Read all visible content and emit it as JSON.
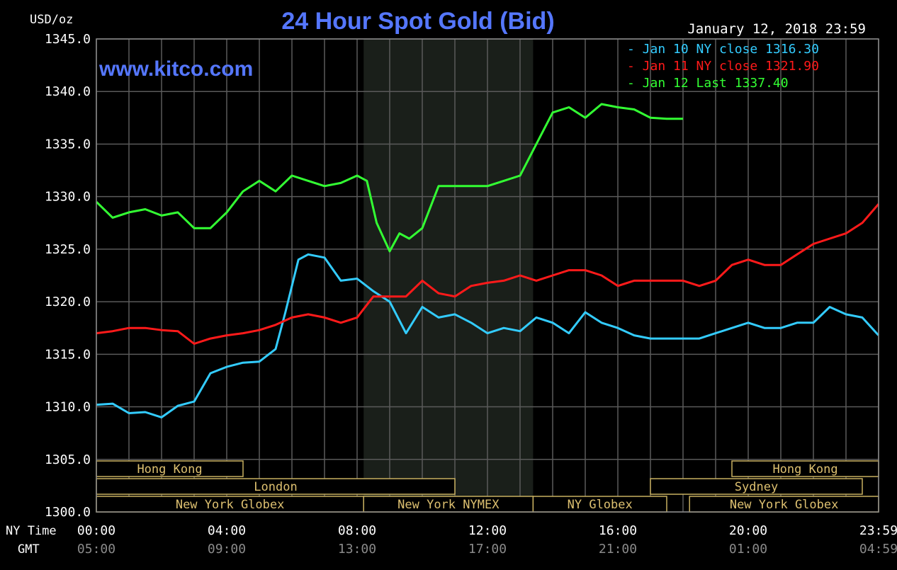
{
  "chart_data": {
    "type": "line",
    "title": "24 Hour Spot Gold (Bid)",
    "ylabel": "USD/oz",
    "watermark": "www.kitco.com",
    "timestamp": "January 12, 2018 23:59",
    "ylim": [
      1300,
      1345
    ],
    "yticks": [
      "1345.0",
      "1340.0",
      "1335.0",
      "1330.0",
      "1325.0",
      "1320.0",
      "1315.0",
      "1310.0",
      "1305.0",
      "1300.0"
    ],
    "ytick_values": [
      1345,
      1340,
      1335,
      1330,
      1325,
      1320,
      1315,
      1310,
      1305,
      1300
    ],
    "x_row_labels": {
      "ny": "NY Time",
      "gmt": "GMT"
    },
    "xlim": [
      0,
      24
    ],
    "xticks_ny": [
      {
        "h": 0,
        "label": "00:00"
      },
      {
        "h": 4,
        "label": "04:00"
      },
      {
        "h": 8,
        "label": "08:00"
      },
      {
        "h": 12,
        "label": "12:00"
      },
      {
        "h": 16,
        "label": "16:00"
      },
      {
        "h": 20,
        "label": "20:00"
      },
      {
        "h": 24,
        "label": "23:59"
      }
    ],
    "xticks_gmt": [
      {
        "h": 0,
        "label": "05:00"
      },
      {
        "h": 4,
        "label": "09:00"
      },
      {
        "h": 8,
        "label": "13:00"
      },
      {
        "h": 12,
        "label": "17:00"
      },
      {
        "h": 16,
        "label": "21:00"
      },
      {
        "h": 20,
        "label": "01:00"
      },
      {
        "h": 24,
        "label": "04:59"
      }
    ],
    "grid": true,
    "highlight_hours": [
      8.2,
      13.4
    ],
    "markets": [
      {
        "label": "Hong Kong",
        "row": 0,
        "start": 0,
        "end": 4.5
      },
      {
        "label": "Hong Kong",
        "row": 0,
        "start": 19.5,
        "end": 24
      },
      {
        "label": "London",
        "row": 1,
        "start": 0,
        "end": 11
      },
      {
        "label": "Sydney",
        "row": 1,
        "start": 17,
        "end": 23.5
      },
      {
        "label": "New York Globex",
        "row": 2,
        "start": 0,
        "end": 8.2
      },
      {
        "label": "New York NYMEX",
        "row": 2,
        "start": 8.2,
        "end": 13.4
      },
      {
        "label": "NY Globex",
        "row": 2,
        "start": 13.4,
        "end": 17.5
      },
      {
        "label": "New York Globex",
        "row": 2,
        "start": 18.2,
        "end": 24
      }
    ],
    "legend_placement": "top-right",
    "series": [
      {
        "name": "Jan 10 NY close 1316.30",
        "color": "#33ccff",
        "x": [
          0,
          0.5,
          1,
          1.5,
          2,
          2.5,
          3,
          3.5,
          4,
          4.5,
          5,
          5.5,
          5.8,
          6.2,
          6.5,
          7,
          7.5,
          8,
          8.5,
          9,
          9.5,
          10,
          10.5,
          11,
          11.5,
          12,
          12.5,
          13,
          13.5,
          14,
          14.5,
          15,
          15.5,
          16,
          16.5,
          17,
          17.5,
          18,
          18.5,
          19,
          19.5,
          20,
          20.5,
          21,
          21.5,
          22,
          22.5,
          23,
          23.5,
          24
        ],
        "y": [
          1310.2,
          1310.3,
          1309.4,
          1309.5,
          1309.0,
          1310.1,
          1310.5,
          1313.2,
          1313.8,
          1314.2,
          1314.3,
          1315.5,
          1319.0,
          1324.0,
          1324.5,
          1324.2,
          1322.0,
          1322.2,
          1321.0,
          1320.0,
          1317.0,
          1319.5,
          1318.5,
          1318.8,
          1318.0,
          1317.0,
          1317.5,
          1317.2,
          1318.5,
          1318.0,
          1317.0,
          1319.0,
          1318.0,
          1317.5,
          1316.8,
          1316.5,
          1316.5,
          1316.5,
          1316.5,
          1317.0,
          1317.5,
          1318.0,
          1317.5,
          1317.5,
          1318.0,
          1318.0,
          1319.5,
          1318.8,
          1318.5,
          1316.8
        ]
      },
      {
        "name": "Jan 11 NY close 1321.90",
        "color": "#ff1a1a",
        "x": [
          0,
          0.5,
          1,
          1.5,
          2,
          2.5,
          3,
          3.5,
          4,
          4.5,
          5,
          5.5,
          6,
          6.5,
          7,
          7.5,
          8,
          8.5,
          9,
          9.5,
          10,
          10.5,
          11,
          11.5,
          12,
          12.5,
          13,
          13.5,
          14,
          14.5,
          15,
          15.5,
          16,
          16.5,
          17,
          17.5,
          18,
          18.5,
          19,
          19.5,
          20,
          20.5,
          21,
          21.5,
          22,
          22.5,
          23,
          23.5,
          24
        ],
        "y": [
          1317.0,
          1317.2,
          1317.5,
          1317.5,
          1317.3,
          1317.2,
          1316.0,
          1316.5,
          1316.8,
          1317.0,
          1317.3,
          1317.8,
          1318.5,
          1318.8,
          1318.5,
          1318.0,
          1318.5,
          1320.5,
          1320.5,
          1320.5,
          1322.0,
          1320.8,
          1320.5,
          1321.5,
          1321.8,
          1322.0,
          1322.5,
          1322.0,
          1322.5,
          1323.0,
          1323.0,
          1322.5,
          1321.5,
          1322.0,
          1322.0,
          1322.0,
          1322.0,
          1321.5,
          1322.0,
          1323.5,
          1324.0,
          1323.5,
          1323.5,
          1324.5,
          1325.5,
          1326.0,
          1326.5,
          1327.5,
          1329.3
        ]
      },
      {
        "name": "Jan 12 Last 1337.40",
        "color": "#33ff33",
        "x": [
          0,
          0.5,
          1,
          1.5,
          2,
          2.5,
          3,
          3.5,
          4,
          4.5,
          5,
          5.5,
          6,
          6.5,
          7,
          7.5,
          8,
          8.3,
          8.6,
          9,
          9.3,
          9.6,
          10,
          10.5,
          11,
          11.5,
          12,
          12.5,
          13,
          13.5,
          14,
          14.5,
          15,
          15.5,
          16,
          16.5,
          17,
          17.5,
          18
        ],
        "y": [
          1329.5,
          1328.0,
          1328.5,
          1328.8,
          1328.2,
          1328.5,
          1327.0,
          1327.0,
          1328.5,
          1330.5,
          1331.5,
          1330.5,
          1332.0,
          1331.5,
          1331.0,
          1331.3,
          1332.0,
          1331.5,
          1327.5,
          1324.8,
          1326.5,
          1326.0,
          1327.0,
          1331.0,
          1331.0,
          1331.0,
          1331.0,
          1331.5,
          1332.0,
          1335.0,
          1338.0,
          1338.5,
          1337.5,
          1338.8,
          1338.5,
          1338.3,
          1337.5,
          1337.4,
          1337.4
        ]
      }
    ]
  }
}
